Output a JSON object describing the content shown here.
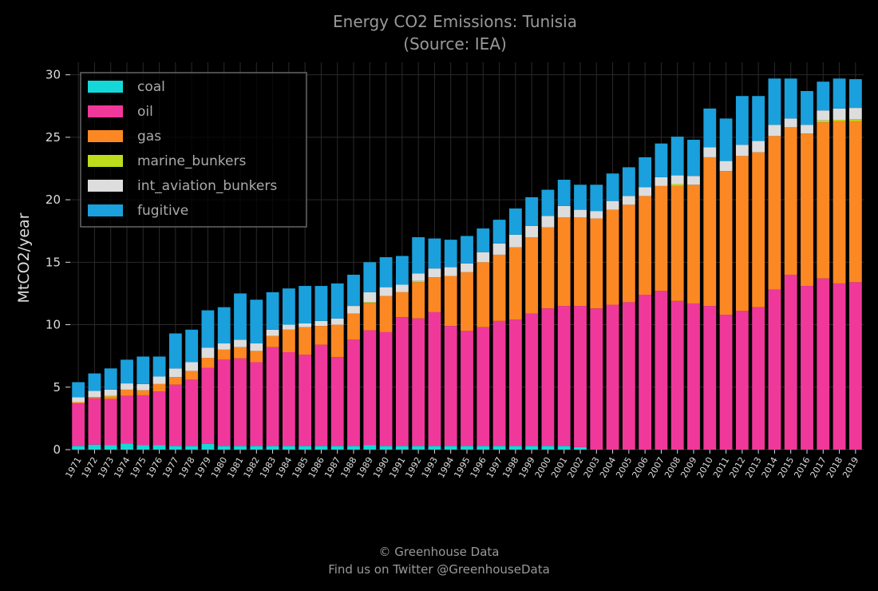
{
  "footer": {
    "line1": "© Greenhouse Data",
    "line2": "Find us on Twitter @GreenhouseData"
  },
  "chart_data": {
    "type": "bar",
    "stacked": true,
    "title": "Energy CO2 Emissions: Tunisia",
    "subtitle": "(Source: IEA)",
    "xlabel": "",
    "ylabel": "MtCO2/year",
    "ylim": [
      0,
      31
    ],
    "yticks": [
      0,
      5,
      10,
      15,
      20,
      25,
      30
    ],
    "grid": true,
    "legend_position": "top-left",
    "categories": [
      "1971",
      "1972",
      "1973",
      "1974",
      "1975",
      "1976",
      "1977",
      "1978",
      "1979",
      "1980",
      "1981",
      "1982",
      "1983",
      "1984",
      "1985",
      "1986",
      "1987",
      "1988",
      "1989",
      "1990",
      "1991",
      "1992",
      "1993",
      "1994",
      "1995",
      "1996",
      "1997",
      "1998",
      "1999",
      "2000",
      "2001",
      "2002",
      "2003",
      "2004",
      "2005",
      "2006",
      "2007",
      "2008",
      "2009",
      "2010",
      "2011",
      "2012",
      "2013",
      "2014",
      "2015",
      "2016",
      "2017",
      "2018",
      "2019"
    ],
    "series": [
      {
        "name": "coal",
        "color": "#14d8d8",
        "values": [
          0.3,
          0.4,
          0.35,
          0.5,
          0.35,
          0.35,
          0.3,
          0.3,
          0.45,
          0.3,
          0.3,
          0.3,
          0.3,
          0.3,
          0.3,
          0.3,
          0.3,
          0.3,
          0.35,
          0.3,
          0.3,
          0.3,
          0.3,
          0.3,
          0.3,
          0.3,
          0.3,
          0.3,
          0.3,
          0.3,
          0.3,
          0.2,
          0,
          0,
          0,
          0,
          0,
          0,
          0,
          0,
          0,
          0,
          0,
          0,
          0,
          0,
          0,
          0,
          0
        ]
      },
      {
        "name": "oil",
        "color": "#f0389b",
        "values": [
          3.4,
          3.7,
          3.7,
          3.8,
          4.0,
          4.3,
          4.9,
          5.3,
          6.1,
          6.9,
          7.0,
          6.7,
          7.9,
          7.5,
          7.3,
          8.1,
          7.1,
          8.5,
          9.2,
          9.1,
          10.3,
          10.2,
          10.7,
          9.6,
          9.2,
          9.5,
          10.0,
          10.1,
          10.6,
          11.0,
          11.2,
          11.3,
          11.3,
          11.6,
          11.8,
          12.4,
          12.7,
          11.9,
          11.7,
          11.5,
          10.8,
          11.1,
          11.4,
          12.8,
          14.0,
          13.1,
          13.7,
          13.3,
          13.4
        ]
      },
      {
        "name": "gas",
        "color": "#fb8823",
        "values": [
          0.1,
          0.1,
          0.2,
          0.5,
          0.4,
          0.6,
          0.6,
          0.7,
          0.8,
          0.8,
          0.9,
          0.9,
          0.9,
          1.8,
          2.2,
          1.5,
          2.6,
          2.1,
          2.2,
          2.9,
          2.0,
          2.9,
          2.8,
          4.0,
          4.7,
          5.2,
          5.3,
          5.8,
          6.1,
          6.5,
          7.1,
          7.1,
          7.2,
          7.6,
          7.8,
          7.9,
          8.4,
          9.2,
          9.5,
          11.9,
          11.5,
          12.4,
          12.4,
          12.3,
          11.8,
          12.2,
          12.5,
          13.0,
          12.9
        ]
      },
      {
        "name": "marine_bunkers",
        "color": "#bcdc1c",
        "values": [
          0,
          0,
          0.05,
          0,
          0,
          0,
          0,
          0,
          0,
          0,
          0,
          0,
          0,
          0,
          0,
          0,
          0,
          0,
          0.05,
          0,
          0,
          0.1,
          0,
          0,
          0,
          0,
          0,
          0,
          0,
          0,
          0,
          0,
          0,
          0,
          0,
          0,
          0,
          0.15,
          0,
          0,
          0,
          0,
          0,
          0,
          0,
          0,
          0.15,
          0.1,
          0.15
        ]
      },
      {
        "name": "int_aviation_bunkers",
        "color": "#dddddd",
        "values": [
          0.4,
          0.5,
          0.5,
          0.5,
          0.5,
          0.6,
          0.7,
          0.7,
          0.8,
          0.5,
          0.6,
          0.6,
          0.5,
          0.4,
          0.3,
          0.4,
          0.5,
          0.6,
          0.8,
          0.7,
          0.6,
          0.6,
          0.7,
          0.7,
          0.7,
          0.8,
          0.9,
          1.0,
          0.9,
          0.9,
          0.9,
          0.6,
          0.6,
          0.7,
          0.7,
          0.7,
          0.7,
          0.7,
          0.7,
          0.8,
          0.8,
          0.9,
          0.9,
          0.9,
          0.7,
          0.7,
          0.8,
          0.9,
          0.9
        ]
      },
      {
        "name": "fugitive",
        "color": "#1aa0dc",
        "values": [
          1.2,
          1.4,
          1.7,
          1.9,
          2.2,
          1.6,
          2.8,
          2.6,
          3.0,
          2.9,
          3.7,
          3.5,
          3.0,
          2.9,
          3.0,
          2.8,
          2.8,
          2.5,
          2.4,
          2.4,
          2.3,
          2.9,
          2.4,
          2.2,
          2.2,
          1.9,
          1.9,
          2.1,
          2.3,
          2.1,
          2.1,
          2.0,
          2.1,
          2.2,
          2.3,
          2.4,
          2.7,
          3.1,
          2.9,
          3.1,
          3.4,
          3.9,
          3.6,
          3.7,
          3.2,
          2.7,
          2.3,
          2.4,
          2.3
        ]
      }
    ]
  }
}
